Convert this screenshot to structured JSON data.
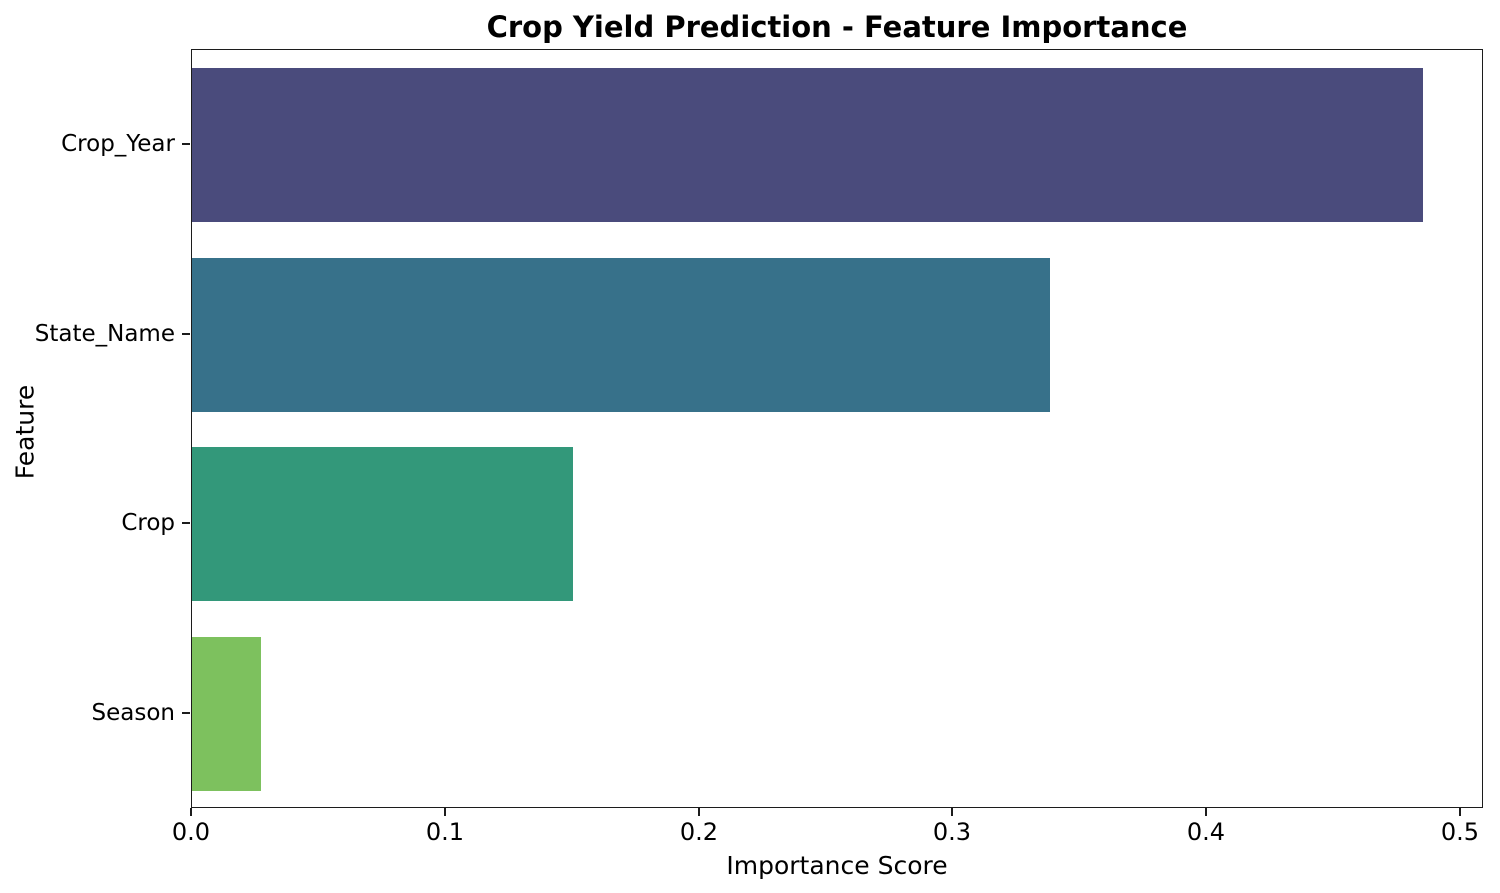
{
  "chart_data": {
    "type": "bar",
    "orientation": "horizontal",
    "title": "Crop Yield Prediction - Feature Importance",
    "xlabel": "Importance Score",
    "ylabel": "Feature",
    "categories": [
      "Crop_Year",
      "State_Name",
      "Crop",
      "Season"
    ],
    "values": [
      0.485,
      0.338,
      0.15,
      0.027
    ],
    "bar_colors": [
      "#4a4b7c",
      "#37718a",
      "#33987a",
      "#7dc15e"
    ],
    "xlim": [
      0,
      0.509
    ],
    "xticks": [
      {
        "value": 0.0,
        "label": "0.0"
      },
      {
        "value": 0.1,
        "label": "0.1"
      },
      {
        "value": 0.2,
        "label": "0.2"
      },
      {
        "value": 0.3,
        "label": "0.3"
      },
      {
        "value": 0.4,
        "label": "0.4"
      },
      {
        "value": 0.5,
        "label": "0.5"
      }
    ],
    "grid": false,
    "legend": null,
    "background_color": "#ffffff",
    "spine_color": "#1c1c1c",
    "text_color": "#000000"
  }
}
